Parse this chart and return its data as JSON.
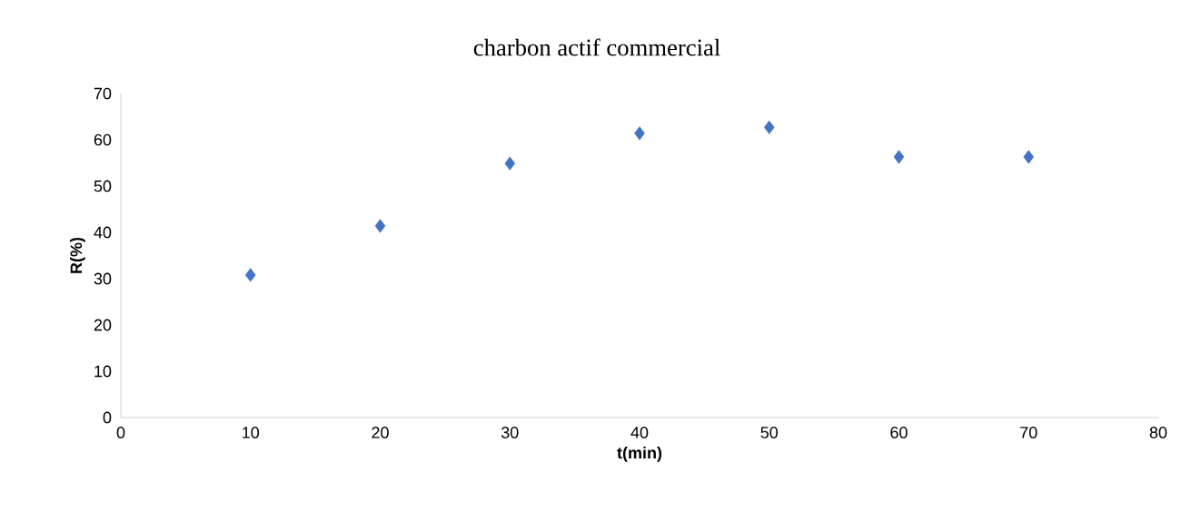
{
  "chart_data": {
    "type": "scatter",
    "title": "charbon actif commercial",
    "xlabel": "t(min)",
    "ylabel": "R(%)",
    "x": [
      10,
      20,
      30,
      40,
      50,
      60,
      70
    ],
    "values": [
      30.8,
      41.4,
      54.9,
      61.4,
      62.7,
      56.3,
      56.3
    ],
    "color": "#4472c4",
    "marker": "diamond",
    "xlim": [
      0,
      80
    ],
    "ylim": [
      0,
      70
    ],
    "xticks": [
      0,
      10,
      20,
      30,
      40,
      50,
      60,
      70,
      80
    ],
    "yticks": [
      0,
      10,
      20,
      30,
      40,
      50,
      60,
      70
    ]
  }
}
